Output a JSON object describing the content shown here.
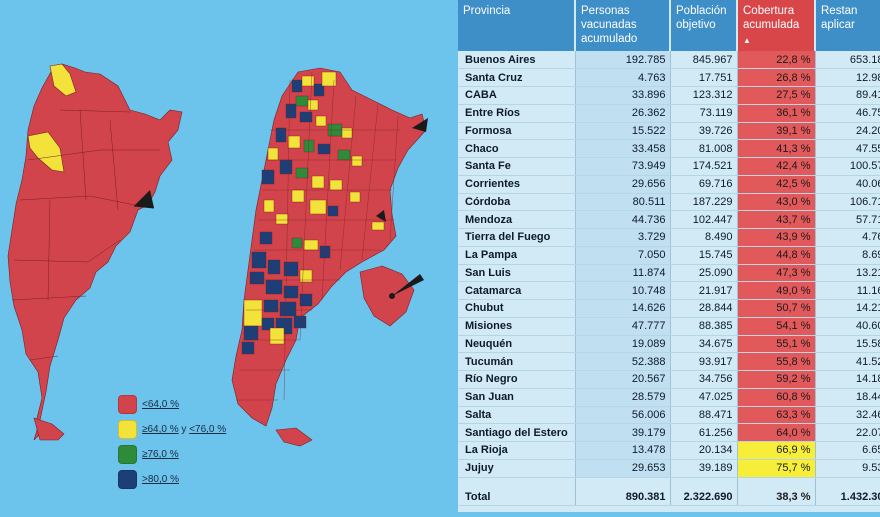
{
  "colors": {
    "background": "#6cc3ec",
    "map_red": "#d2444b",
    "map_yellow": "#f5eb3c",
    "map_green": "#2e8b3a",
    "map_blue": "#1c3f78",
    "header_blue": "#3e8fc8",
    "header_red": "#d9464a",
    "cell_red": "#e2595c",
    "cell_yellow": "#f7ee3a"
  },
  "legend": [
    {
      "color": "#d2444b",
      "parts": [
        "<64,0 %"
      ]
    },
    {
      "color": "#f2e23a",
      "parts": [
        "≥64,0 %",
        "y",
        "<76,0 %"
      ]
    },
    {
      "color": "#2e8b3a",
      "parts": [
        "≥76,0 %"
      ]
    },
    {
      "color": "#1c3f78",
      "parts": [
        ">80,0 %"
      ]
    }
  ],
  "table": {
    "headers": [
      "Provincia",
      "Personas vacunadas acumulado",
      "Población objetivo",
      "Cobertura acumulada",
      "Restan aplicar"
    ],
    "sorted_column": 3,
    "sort_indicator": "▲",
    "rows": [
      {
        "provincia": "Buenos Aires",
        "vacunadas": "192.785",
        "objetivo": "845.967",
        "cobertura": "22,8 %",
        "restan": "653.18",
        "band": "red"
      },
      {
        "provincia": "Santa Cruz",
        "vacunadas": "4.763",
        "objetivo": "17.751",
        "cobertura": "26,8 %",
        "restan": "12.98",
        "band": "red"
      },
      {
        "provincia": "CABA",
        "vacunadas": "33.896",
        "objetivo": "123.312",
        "cobertura": "27,5 %",
        "restan": "89.41",
        "band": "red"
      },
      {
        "provincia": "Entre Ríos",
        "vacunadas": "26.362",
        "objetivo": "73.119",
        "cobertura": "36,1 %",
        "restan": "46.75",
        "band": "red"
      },
      {
        "provincia": "Formosa",
        "vacunadas": "15.522",
        "objetivo": "39.726",
        "cobertura": "39,1 %",
        "restan": "24.20",
        "band": "red"
      },
      {
        "provincia": "Chaco",
        "vacunadas": "33.458",
        "objetivo": "81.008",
        "cobertura": "41,3 %",
        "restan": "47.55",
        "band": "red"
      },
      {
        "provincia": "Santa Fe",
        "vacunadas": "73.949",
        "objetivo": "174.521",
        "cobertura": "42,4 %",
        "restan": "100.57",
        "band": "red"
      },
      {
        "provincia": "Corrientes",
        "vacunadas": "29.656",
        "objetivo": "69.716",
        "cobertura": "42,5 %",
        "restan": "40.06",
        "band": "red"
      },
      {
        "provincia": "Córdoba",
        "vacunadas": "80.511",
        "objetivo": "187.229",
        "cobertura": "43,0 %",
        "restan": "106.71",
        "band": "red"
      },
      {
        "provincia": "Mendoza",
        "vacunadas": "44.736",
        "objetivo": "102.447",
        "cobertura": "43,7 %",
        "restan": "57.71",
        "band": "red"
      },
      {
        "provincia": "Tierra del Fuego",
        "vacunadas": "3.729",
        "objetivo": "8.490",
        "cobertura": "43,9 %",
        "restan": "4.76",
        "band": "red"
      },
      {
        "provincia": "La Pampa",
        "vacunadas": "7.050",
        "objetivo": "15.745",
        "cobertura": "44,8 %",
        "restan": "8.69",
        "band": "red"
      },
      {
        "provincia": "San Luis",
        "vacunadas": "11.874",
        "objetivo": "25.090",
        "cobertura": "47,3 %",
        "restan": "13.21",
        "band": "red"
      },
      {
        "provincia": "Catamarca",
        "vacunadas": "10.748",
        "objetivo": "21.917",
        "cobertura": "49,0 %",
        "restan": "11.16",
        "band": "red"
      },
      {
        "provincia": "Chubut",
        "vacunadas": "14.626",
        "objetivo": "28.844",
        "cobertura": "50,7 %",
        "restan": "14.21",
        "band": "red"
      },
      {
        "provincia": "Misiones",
        "vacunadas": "47.777",
        "objetivo": "88.385",
        "cobertura": "54,1 %",
        "restan": "40.60",
        "band": "red"
      },
      {
        "provincia": "Neuquén",
        "vacunadas": "19.089",
        "objetivo": "34.675",
        "cobertura": "55,1 %",
        "restan": "15.58",
        "band": "red"
      },
      {
        "provincia": "Tucumán",
        "vacunadas": "52.388",
        "objetivo": "93.917",
        "cobertura": "55,8 %",
        "restan": "41.52",
        "band": "red"
      },
      {
        "provincia": "Río Negro",
        "vacunadas": "20.567",
        "objetivo": "34.756",
        "cobertura": "59,2 %",
        "restan": "14.18",
        "band": "red"
      },
      {
        "provincia": "San Juan",
        "vacunadas": "28.579",
        "objetivo": "47.025",
        "cobertura": "60,8 %",
        "restan": "18.44",
        "band": "red"
      },
      {
        "provincia": "Salta",
        "vacunadas": "56.006",
        "objetivo": "88.471",
        "cobertura": "63,3 %",
        "restan": "32.46",
        "band": "red"
      },
      {
        "provincia": "Santiago del Estero",
        "vacunadas": "39.179",
        "objetivo": "61.256",
        "cobertura": "64,0 %",
        "restan": "22.07",
        "band": "red"
      },
      {
        "provincia": "La Rioja",
        "vacunadas": "13.478",
        "objetivo": "20.134",
        "cobertura": "66,9 %",
        "restan": "6.65",
        "band": "yellow"
      },
      {
        "provincia": "Jujuy",
        "vacunadas": "29.653",
        "objetivo": "39.189",
        "cobertura": "75,7 %",
        "restan": "9.53",
        "band": "yellow"
      }
    ],
    "total": {
      "provincia": "Total",
      "vacunadas": "890.381",
      "objetivo": "2.322.690",
      "cobertura": "38,3 %",
      "restan": "1.432.30"
    }
  },
  "chart_data": {
    "type": "table",
    "columns": [
      "Provincia",
      "Personas vacunadas acumulado",
      "Población objetivo",
      "Cobertura acumulada",
      "Restan aplicar"
    ],
    "rows": [
      [
        "Buenos Aires",
        192785,
        845967,
        22.8,
        653.18
      ],
      [
        "Santa Cruz",
        4763,
        17751,
        26.8,
        12.98
      ],
      [
        "CABA",
        33896,
        123312,
        27.5,
        89.41
      ],
      [
        "Entre Ríos",
        26362,
        73119,
        36.1,
        46.75
      ],
      [
        "Formosa",
        15522,
        39726,
        39.1,
        24.2
      ],
      [
        "Chaco",
        33458,
        81008,
        41.3,
        47.55
      ],
      [
        "Santa Fe",
        73949,
        174521,
        42.4,
        100.57
      ],
      [
        "Corrientes",
        29656,
        69716,
        42.5,
        40.06
      ],
      [
        "Córdoba",
        80511,
        187229,
        43.0,
        106.71
      ],
      [
        "Mendoza",
        44736,
        102447,
        43.7,
        57.71
      ],
      [
        "Tierra del Fuego",
        3729,
        8490,
        43.9,
        4.76
      ],
      [
        "La Pampa",
        7050,
        15745,
        44.8,
        8.69
      ],
      [
        "San Luis",
        11874,
        25090,
        47.3,
        13.21
      ],
      [
        "Catamarca",
        10748,
        21917,
        49.0,
        11.16
      ],
      [
        "Chubut",
        14626,
        28844,
        50.7,
        14.21
      ],
      [
        "Misiones",
        47777,
        88385,
        54.1,
        40.6
      ],
      [
        "Neuquén",
        19089,
        34675,
        55.1,
        15.58
      ],
      [
        "Tucumán",
        52388,
        93917,
        55.8,
        41.52
      ],
      [
        "Río Negro",
        20567,
        34756,
        59.2,
        14.18
      ],
      [
        "San Juan",
        28579,
        47025,
        60.8,
        18.44
      ],
      [
        "Salta",
        56006,
        88471,
        63.3,
        32.46
      ],
      [
        "Santiago del Estero",
        39179,
        61256,
        64.0,
        22.07
      ],
      [
        "La Rioja",
        13478,
        20134,
        66.9,
        6.65
      ],
      [
        "Jujuy",
        29653,
        39189,
        75.7,
        9.53
      ]
    ],
    "total": [
      "Total",
      890381,
      2322690,
      38.3,
      1432.3
    ],
    "legend": [
      "<64,0 %",
      "≥64,0 % y <76,0 %",
      "≥76,0 %",
      ">80,0 %"
    ]
  }
}
